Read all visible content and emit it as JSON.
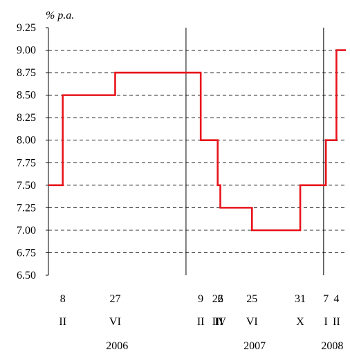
{
  "chart_data": {
    "type": "line",
    "step": true,
    "ylabel": "% p.a.",
    "ylim": [
      6.5,
      9.25
    ],
    "yticks": [
      "9.25",
      "9.00",
      "8.75",
      "8.50",
      "8.25",
      "8.00",
      "7.75",
      "7.50",
      "7.25",
      "7.00",
      "6.75",
      "6.50"
    ],
    "grid": "horizontal dashed",
    "series": [
      {
        "color": "#e8141b",
        "points": [
          {
            "x": "2006-01-01",
            "y": 7.5
          },
          {
            "x": "2006-02-08",
            "y": 8.5
          },
          {
            "x": "2006-06-27",
            "y": 8.75
          },
          {
            "x": "2007-02-09",
            "y": 8.0
          },
          {
            "x": "2007-03-26",
            "y": 7.5
          },
          {
            "x": "2007-04-02",
            "y": 7.25
          },
          {
            "x": "2007-06-25",
            "y": 7.0
          },
          {
            "x": "2007-10-31",
            "y": 7.5
          },
          {
            "x": "2008-01-07",
            "y": 8.0
          },
          {
            "x": "2008-02-04",
            "y": 9.0
          },
          {
            "x": "2008-02-29",
            "y": 9.0
          }
        ]
      }
    ],
    "x_tick_labels": [
      {
        "day": "8",
        "month": "II",
        "date": "2006-02-08"
      },
      {
        "day": "27",
        "month": "VI",
        "date": "2006-06-27"
      },
      {
        "day": "9",
        "month": "II",
        "date": "2007-02-09"
      },
      {
        "day": "26",
        "month": "III",
        "date": "2007-03-26"
      },
      {
        "day": "2",
        "month": "IV",
        "date": "2007-04-02"
      },
      {
        "day": "25",
        "month": "VI",
        "date": "2007-06-25"
      },
      {
        "day": "31",
        "month": "X",
        "date": "2007-10-31"
      },
      {
        "day": "7",
        "month": "I",
        "date": "2008-01-07"
      },
      {
        "day": "4",
        "month": "II",
        "date": "2008-02-04"
      }
    ],
    "years": [
      {
        "label": "2006",
        "center": "2006-07-02"
      },
      {
        "label": "2007",
        "center": "2007-07-02"
      },
      {
        "label": "2008",
        "center": "2008-01-24"
      }
    ],
    "year_dividers": [
      "2007-01-01",
      "2008-01-01"
    ]
  }
}
